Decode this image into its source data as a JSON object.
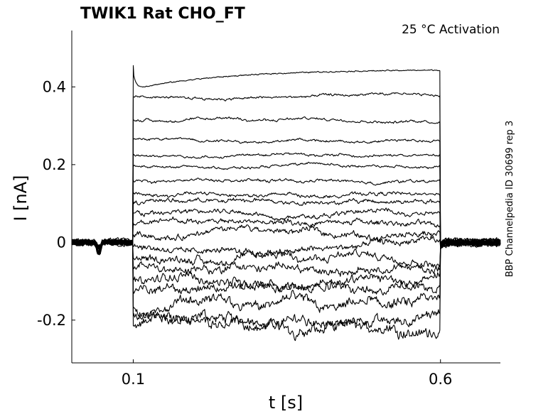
{
  "chart_data": {
    "type": "line",
    "title": "TWIK1  Rat  CHO_FT",
    "subtitle": "25 °C  Activation",
    "side_label": "BBP Channelpedia ID 30699 rep 3",
    "xlabel": "t [s]",
    "ylabel": "I [nA]",
    "xlim": [
      0.0,
      0.6975
    ],
    "ylim": [
      -0.31,
      0.545
    ],
    "x_ticks": [
      0.1,
      0.6
    ],
    "x_tick_labels": [
      "0.1",
      "0.6"
    ],
    "y_ticks": [
      -0.2,
      0,
      0.2,
      0.4
    ],
    "y_tick_labels": [
      "-0.2",
      "0",
      "0.2",
      "0.4"
    ],
    "grid": false,
    "legend": "none",
    "step_start": 0.1,
    "step_end": 0.6,
    "baseline": 0.0,
    "line_color": "#000000",
    "sweeps_steady_state": [
      -0.215,
      -0.19,
      -0.165,
      -0.125,
      -0.095,
      -0.065,
      -0.04,
      -0.01,
      0.02,
      0.05,
      0.075,
      0.105,
      0.125,
      0.16,
      0.195,
      0.225,
      0.265,
      0.315,
      0.375,
      0.445
    ]
  }
}
